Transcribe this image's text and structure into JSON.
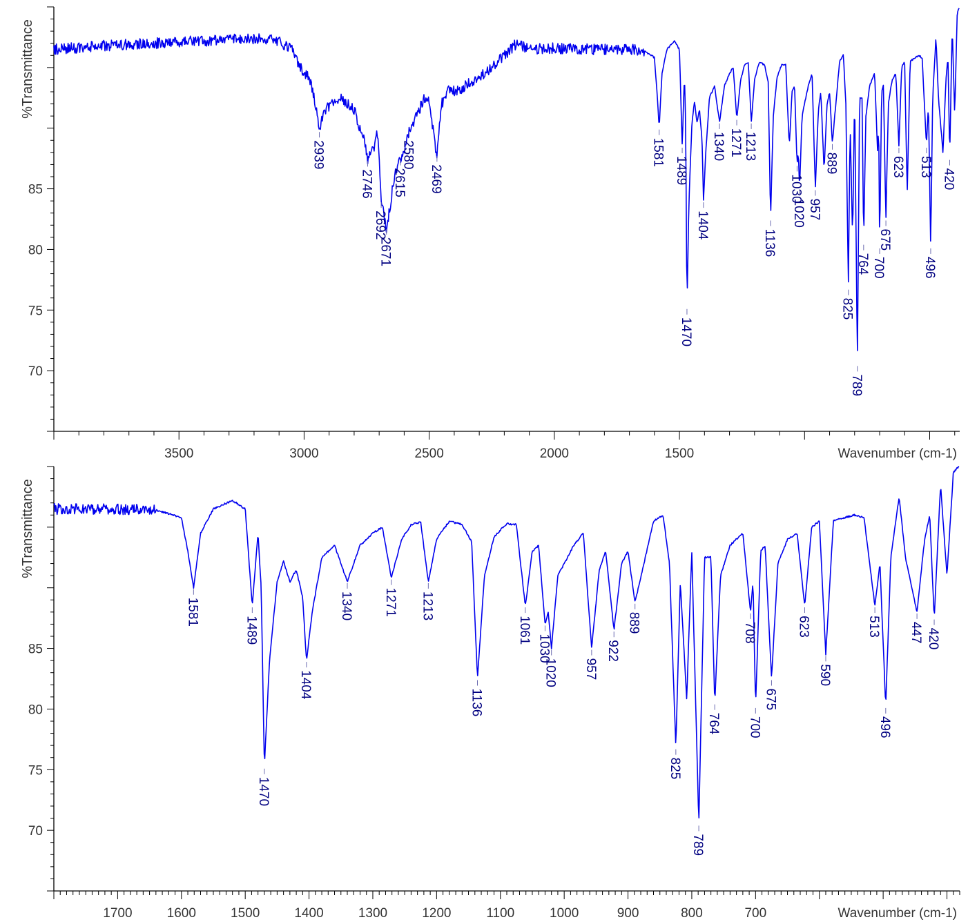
{
  "chart_data": [
    {
      "type": "line",
      "ylabel": "%Transmittance",
      "xlabel": "Wavenumber (cm-1)",
      "xlim": [
        4000,
        380
      ],
      "ylim": [
        65,
        100
      ],
      "x_ticks": [
        3500,
        3000,
        2500,
        2000,
        1500
      ],
      "y_ticks": [
        70,
        75,
        80,
        85
      ],
      "baseline": [
        [
          4000,
          96.5
        ],
        [
          3800,
          96.8
        ],
        [
          3600,
          97
        ],
        [
          3400,
          97.2
        ],
        [
          3200,
          97.4
        ],
        [
          3100,
          97.2
        ],
        [
          3050,
          96.5
        ],
        [
          3000,
          94.5
        ],
        [
          2980,
          94.2
        ],
        [
          2960,
          92.5
        ],
        [
          2939,
          89.8
        ],
        [
          2920,
          91.5
        ],
        [
          2900,
          91.8
        ],
        [
          2850,
          92.5
        ],
        [
          2800,
          91.5
        ],
        [
          2760,
          89
        ],
        [
          2746,
          87.4
        ],
        [
          2720,
          88.5
        ],
        [
          2710,
          90
        ],
        [
          2700,
          88
        ],
        [
          2692,
          84
        ],
        [
          2680,
          82.8
        ],
        [
          2671,
          81.8
        ],
        [
          2660,
          83
        ],
        [
          2640,
          86
        ],
        [
          2615,
          87.5
        ],
        [
          2600,
          88.2
        ],
        [
          2580,
          89.8
        ],
        [
          2560,
          90.6
        ],
        [
          2540,
          91.5
        ],
        [
          2520,
          92.5
        ],
        [
          2500,
          92.4
        ],
        [
          2480,
          89
        ],
        [
          2469,
          87.8
        ],
        [
          2450,
          92
        ],
        [
          2420,
          93.2
        ],
        [
          2380,
          93
        ],
        [
          2340,
          93.8
        ],
        [
          2300,
          94.2
        ],
        [
          2250,
          95
        ],
        [
          2200,
          96
        ],
        [
          2150,
          97
        ],
        [
          2100,
          96.5
        ],
        [
          2000,
          96.6
        ],
        [
          1900,
          96.5
        ],
        [
          1800,
          96.5
        ],
        [
          1700,
          96.5
        ],
        [
          1640,
          96.4
        ],
        [
          1600,
          95.8
        ],
        [
          1590,
          93
        ],
        [
          1581,
          90
        ],
        [
          1570,
          94.5
        ],
        [
          1550,
          96.5
        ],
        [
          1520,
          97.2
        ],
        [
          1500,
          96.5
        ],
        [
          1489,
          88.5
        ],
        [
          1480,
          94.5
        ],
        [
          1475,
          90
        ],
        [
          1470,
          75.2
        ],
        [
          1462,
          84
        ],
        [
          1450,
          90.5
        ],
        [
          1440,
          92.2
        ],
        [
          1430,
          90.5
        ],
        [
          1420,
          91.5
        ],
        [
          1410,
          89.2
        ],
        [
          1404,
          84
        ],
        [
          1395,
          88
        ],
        [
          1380,
          92.5
        ],
        [
          1360,
          93.5
        ],
        [
          1340,
          90.5
        ],
        [
          1320,
          93.5
        ],
        [
          1300,
          94.5
        ],
        [
          1285,
          95
        ],
        [
          1271,
          90.8
        ],
        [
          1255,
          94
        ],
        [
          1240,
          95.2
        ],
        [
          1225,
          95.4
        ],
        [
          1213,
          90.5
        ],
        [
          1200,
          94
        ],
        [
          1180,
          95.5
        ],
        [
          1160,
          95.2
        ],
        [
          1145,
          93.8
        ],
        [
          1136,
          82.5
        ],
        [
          1125,
          91
        ],
        [
          1110,
          94.2
        ],
        [
          1090,
          95.3
        ],
        [
          1075,
          95.2
        ],
        [
          1061,
          88.5
        ],
        [
          1050,
          93
        ],
        [
          1040,
          93.5
        ],
        [
          1030,
          87
        ],
        [
          1025,
          88
        ],
        [
          1020,
          85
        ],
        [
          1010,
          91
        ],
        [
          1000,
          92
        ],
        [
          985,
          93.5
        ],
        [
          970,
          94.5
        ],
        [
          957,
          85
        ],
        [
          945,
          91.5
        ],
        [
          935,
          93
        ],
        [
          922,
          86.5
        ],
        [
          910,
          92
        ],
        [
          900,
          93
        ],
        [
          889,
          88.8
        ],
        [
          875,
          92
        ],
        [
          860,
          95.5
        ],
        [
          845,
          96
        ],
        [
          835,
          92
        ],
        [
          825,
          76.8
        ],
        [
          818,
          90.5
        ],
        [
          808,
          80.8
        ],
        [
          800,
          93
        ],
        [
          789,
          70.5
        ],
        [
          780,
          92.5
        ],
        [
          770,
          92.5
        ],
        [
          764,
          80.5
        ],
        [
          755,
          91
        ],
        [
          740,
          93.5
        ],
        [
          720,
          94.5
        ],
        [
          708,
          88
        ],
        [
          704,
          90.5
        ],
        [
          700,
          80.2
        ],
        [
          692,
          93
        ],
        [
          685,
          93.5
        ],
        [
          675,
          82.5
        ],
        [
          665,
          92
        ],
        [
          650,
          94
        ],
        [
          635,
          94.5
        ],
        [
          623,
          88.5
        ],
        [
          612,
          95
        ],
        [
          600,
          95.5
        ],
        [
          590,
          84.5
        ],
        [
          578,
          95.5
        ],
        [
          560,
          95.8
        ],
        [
          545,
          96
        ],
        [
          530,
          95.8
        ],
        [
          513,
          88.5
        ],
        [
          505,
          92
        ],
        [
          496,
          80.2
        ],
        [
          488,
          92.5
        ],
        [
          475,
          97.5
        ],
        [
          465,
          92.5
        ],
        [
          447,
          88
        ],
        [
          435,
          94
        ],
        [
          427,
          96
        ],
        [
          420,
          87.5
        ],
        [
          410,
          98.5
        ],
        [
          400,
          91
        ],
        [
          390,
          99.5
        ],
        [
          382,
          100
        ]
      ],
      "peaks": [
        {
          "x": 2939,
          "label": "2939"
        },
        {
          "x": 2746,
          "label": "2746"
        },
        {
          "x": 2692,
          "label": "2692"
        },
        {
          "x": 2671,
          "label": "2671"
        },
        {
          "x": 2615,
          "label": "2615"
        },
        {
          "x": 2580,
          "label": "2580"
        },
        {
          "x": 2469,
          "label": "2469"
        },
        {
          "x": 1581,
          "label": "1581"
        },
        {
          "x": 1489,
          "label": "1489"
        },
        {
          "x": 1470,
          "label": "1470"
        },
        {
          "x": 1404,
          "label": "1404"
        },
        {
          "x": 1340,
          "label": "1340"
        },
        {
          "x": 1271,
          "label": "1271"
        },
        {
          "x": 1213,
          "label": "1213"
        },
        {
          "x": 1136,
          "label": "1136"
        },
        {
          "x": 1030,
          "label": "1030"
        },
        {
          "x": 1020,
          "label": "1020"
        },
        {
          "x": 957,
          "label": "957"
        },
        {
          "x": 889,
          "label": "889"
        },
        {
          "x": 825,
          "label": "825"
        },
        {
          "x": 789,
          "label": "789"
        },
        {
          "x": 764,
          "label": "764"
        },
        {
          "x": 700,
          "label": "700"
        },
        {
          "x": 675,
          "label": "675"
        },
        {
          "x": 623,
          "label": "623"
        },
        {
          "x": 513,
          "label": "513"
        },
        {
          "x": 496,
          "label": "496"
        },
        {
          "x": 420,
          "label": "420"
        }
      ]
    },
    {
      "type": "line",
      "ylabel": "%Transmittance",
      "xlabel": "Wavenumber (cm-1)",
      "xlim": [
        1800,
        380
      ],
      "ylim": [
        65,
        100
      ],
      "x_ticks": [
        1700,
        1600,
        1500,
        1400,
        1300,
        1200,
        1100,
        1000,
        900,
        800,
        700
      ],
      "y_ticks": [
        70,
        75,
        80,
        85
      ],
      "baseline": "same as panel 1",
      "peaks": [
        {
          "x": 1581,
          "label": "1581"
        },
        {
          "x": 1489,
          "label": "1489"
        },
        {
          "x": 1470,
          "label": "1470"
        },
        {
          "x": 1404,
          "label": "1404"
        },
        {
          "x": 1340,
          "label": "1340"
        },
        {
          "x": 1271,
          "label": "1271"
        },
        {
          "x": 1213,
          "label": "1213"
        },
        {
          "x": 1136,
          "label": "1136"
        },
        {
          "x": 1061,
          "label": "1061"
        },
        {
          "x": 1030,
          "label": "1030"
        },
        {
          "x": 1020,
          "label": "1020"
        },
        {
          "x": 957,
          "label": "957"
        },
        {
          "x": 922,
          "label": "922"
        },
        {
          "x": 889,
          "label": "889"
        },
        {
          "x": 825,
          "label": "825"
        },
        {
          "x": 789,
          "label": "789"
        },
        {
          "x": 764,
          "label": "764"
        },
        {
          "x": 708,
          "label": "708"
        },
        {
          "x": 700,
          "label": "700"
        },
        {
          "x": 675,
          "label": "675"
        },
        {
          "x": 623,
          "label": "623"
        },
        {
          "x": 590,
          "label": "590"
        },
        {
          "x": 513,
          "label": "513"
        },
        {
          "x": 496,
          "label": "496"
        },
        {
          "x": 447,
          "label": "447"
        },
        {
          "x": 420,
          "label": "420"
        }
      ]
    }
  ],
  "colors": {
    "trace": "#0000ee",
    "peak_label": "#000080",
    "leader": "#6b6bb0"
  }
}
